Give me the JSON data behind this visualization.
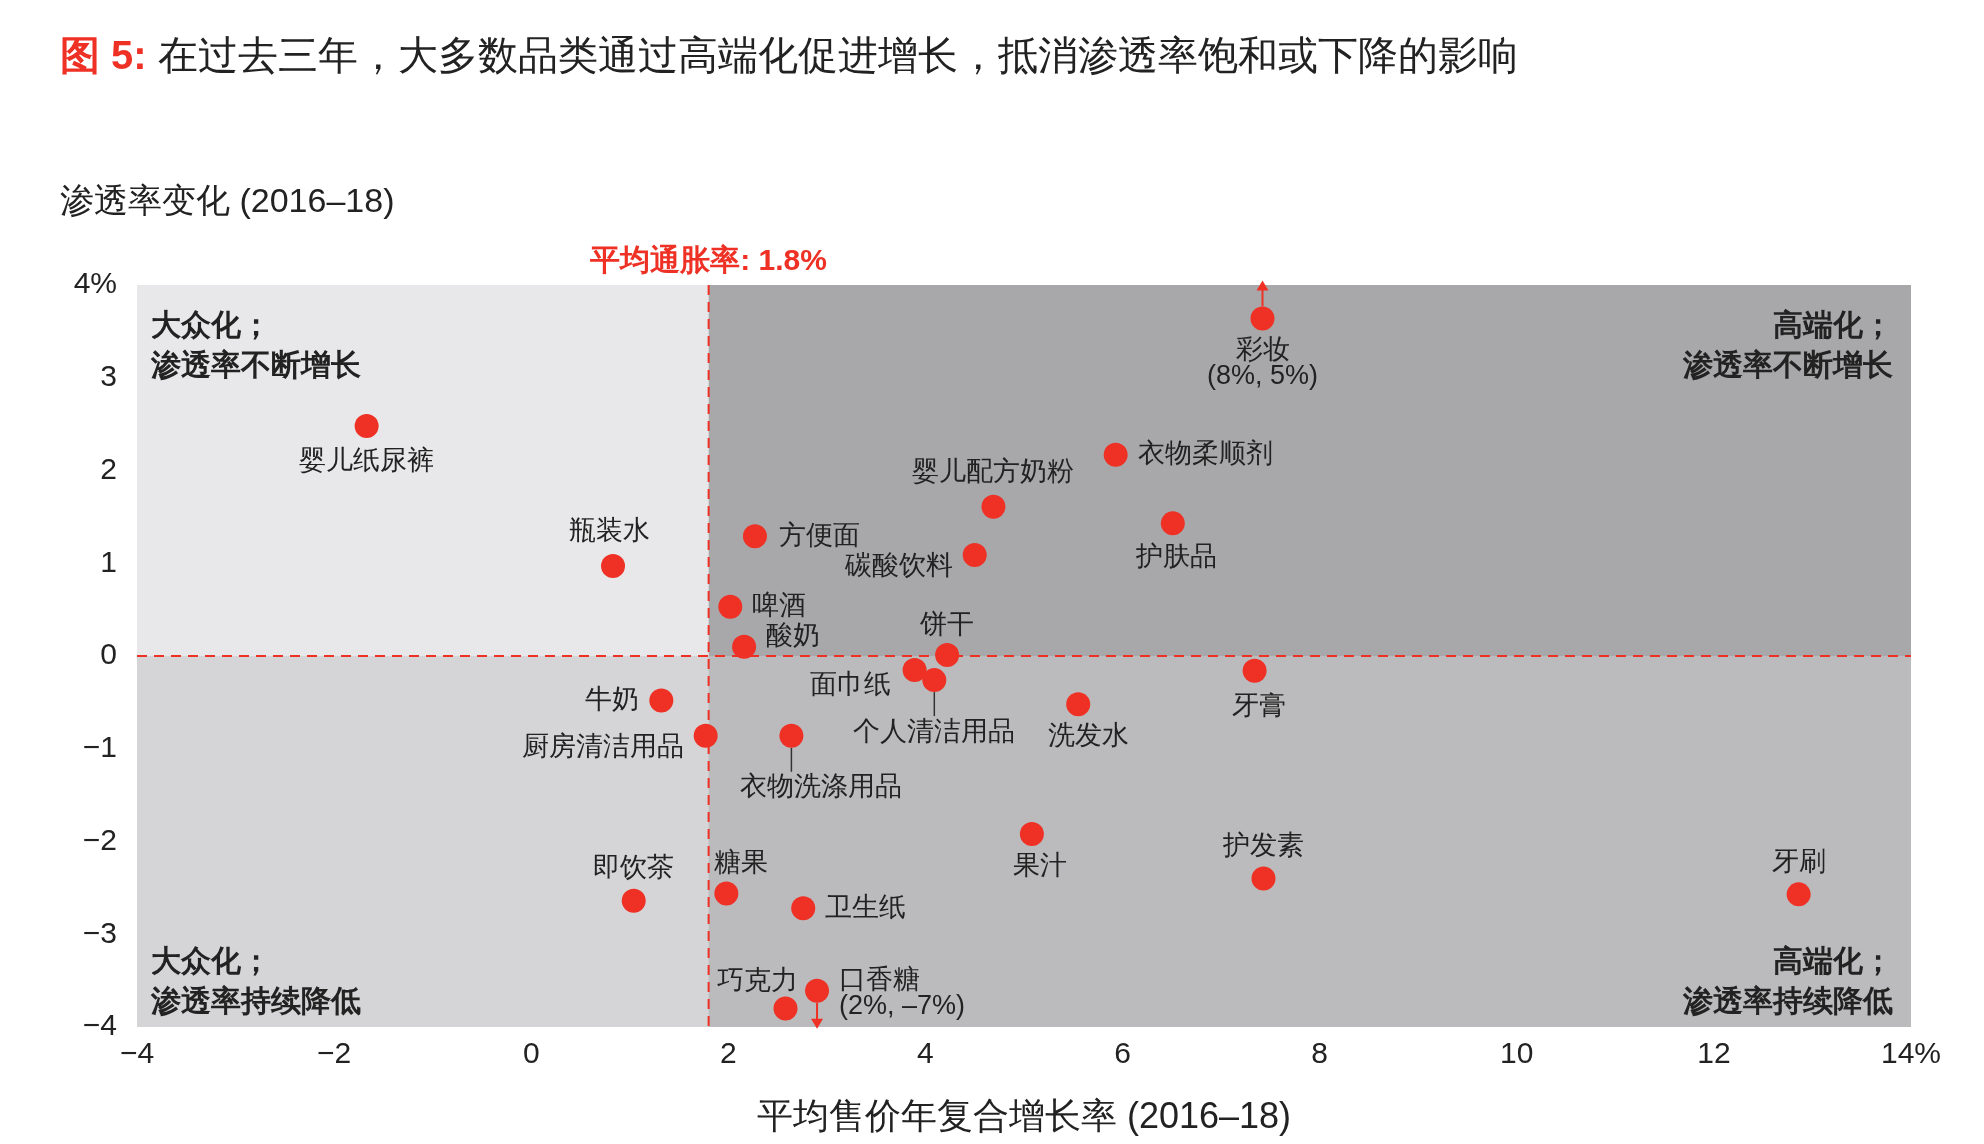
{
  "chart_data": {
    "type": "scatter",
    "title": "图 5: 在过去三年，大多数品类通过高端化促进增长，抵消渗透率饱和或下降的影响",
    "ylabel": "渗透率变化 (2016–18)",
    "xlabel": "平均售价年复合增长率 (2016–18)",
    "x": [
      -1.67,
      0.83,
      2.27,
      2.02,
      2.16,
      1.32,
      1.77,
      2.64,
      3.89,
      4.09,
      4.22,
      4.5,
      4.69,
      5.93,
      6.51,
      7.42,
      7.34,
      5.55,
      5.08,
      7.43,
      12.86,
      1.04,
      1.98,
      2.76,
      2.58,
      2.9
    ],
    "values": [
      2.48,
      0.97,
      1.29,
      0.53,
      0.1,
      -0.48,
      -0.86,
      -0.86,
      -0.15,
      -0.26,
      0.01,
      1.09,
      1.61,
      2.17,
      1.43,
      3.64,
      -0.16,
      -0.52,
      -1.92,
      -2.4,
      -2.57,
      -2.64,
      -2.56,
      -2.72,
      -3.8,
      -3.61
    ],
    "color": "#ee3124",
    "marker": "circle",
    "legend": false,
    "grid": false,
    "xlim": [
      -4,
      14
    ],
    "xticks": [
      {
        "value": -4,
        "label": "−4"
      },
      {
        "value": -2,
        "label": "−2"
      },
      0,
      2,
      4,
      6,
      8,
      10,
      12,
      {
        "value": 14,
        "label": "14%"
      }
    ],
    "ylim": [
      -4,
      4
    ],
    "yticks": [
      {
        "value": -4,
        "label": "−4"
      },
      {
        "value": -3,
        "label": "−3"
      },
      {
        "value": -2,
        "label": "−2"
      },
      {
        "value": -1,
        "label": "−1"
      },
      0,
      1,
      2,
      3,
      {
        "value": 4,
        "label": "4%"
      }
    ],
    "bands": [
      {
        "axis": "x",
        "from": -4,
        "to": 1.8,
        "color": "#e8e8ea"
      },
      {
        "axis": "x",
        "from": 1.8,
        "to": 14,
        "color": "#a8a8ab"
      },
      {
        "axis": "y",
        "from": -4,
        "to": 0,
        "color": "#c8c8ca"
      }
    ],
    "ref_lines": [
      {
        "axis": "x",
        "value": 1.8,
        "label": "平均通胀率: 1.8%",
        "color": "#ee3124",
        "line_style": "dashed"
      },
      {
        "axis": "y",
        "value": 0,
        "color": "#ee3124",
        "line_style": "dashed"
      }
    ],
    "annotations": [
      "大众化；渗透率不断增长",
      "高端化；渗透率不断增长",
      "大众化；渗透率持续降低",
      "高端化；渗透率持续降低",
      {
        "text": "婴儿纸尿裤",
        "x": -1.67,
        "y": 2.48
      },
      {
        "text": "瓶装水",
        "x": 0.83,
        "y": 0.97
      },
      {
        "text": "方便面",
        "x": 2.27,
        "y": 1.29
      },
      {
        "text": "啤酒",
        "x": 2.02,
        "y": 0.53
      },
      {
        "text": "酸奶",
        "x": 2.16,
        "y": 0.1
      },
      {
        "text": "牛奶",
        "x": 1.32,
        "y": -0.48
      },
      {
        "text": "厨房清洁用品",
        "x": 1.77,
        "y": -0.86
      },
      {
        "text": "衣物洗涤用品",
        "x": 2.64,
        "y": -0.86
      },
      {
        "text": "面巾纸",
        "x": 3.89,
        "y": -0.15
      },
      {
        "text": "个人清洁用品",
        "x": 4.09,
        "y": -0.26
      },
      {
        "text": "饼干",
        "x": 4.22,
        "y": 0.01
      },
      {
        "text": "碳酸饮料",
        "x": 4.5,
        "y": 1.09
      },
      {
        "text": "婴儿配方奶粉",
        "x": 4.69,
        "y": 1.61
      },
      {
        "text": "衣物柔顺剂",
        "x": 5.93,
        "y": 2.17
      },
      {
        "text": "护肤品",
        "x": 6.51,
        "y": 1.43
      },
      {
        "text": "彩妆\n(8%, 5%)",
        "x": 7.42,
        "y": 3.64
      },
      {
        "text": "牙膏",
        "x": 7.34,
        "y": -0.16
      },
      {
        "text": "洗发水",
        "x": 5.55,
        "y": -0.52
      },
      {
        "text": "果汁",
        "x": 5.08,
        "y": -1.92
      },
      {
        "text": "护发素",
        "x": 7.43,
        "y": -2.4
      },
      {
        "text": "牙刷",
        "x": 12.86,
        "y": -2.57
      },
      {
        "text": "即饮茶",
        "x": 1.04,
        "y": -2.64
      },
      {
        "text": "糖果",
        "x": 1.98,
        "y": -2.56
      },
      {
        "text": "卫生纸",
        "x": 2.76,
        "y": -2.72
      },
      {
        "text": "巧克力",
        "x": 2.58,
        "y": -3.8
      },
      {
        "text": "口香糖\n(2%, –7%)",
        "x": 2.9,
        "y": -3.61
      }
    ]
  }
}
